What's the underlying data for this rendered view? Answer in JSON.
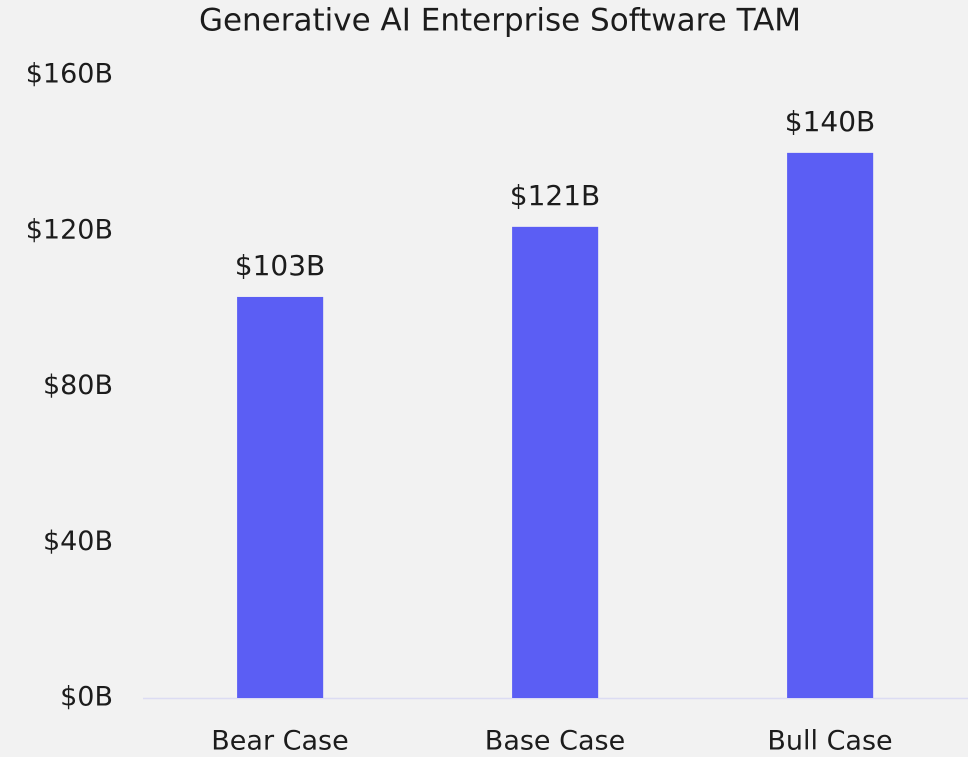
{
  "chart_data": {
    "type": "bar",
    "title": "Generative AI Enterprise Software TAM",
    "categories": [
      "Bear Case",
      "Base Case",
      "Bull Case"
    ],
    "values": [
      103,
      121,
      140
    ],
    "value_labels": [
      "$103B",
      "$121B",
      "$140B"
    ],
    "color": "#5b5ef4",
    "ylim": [
      0,
      160
    ],
    "yticks": [
      {
        "value": 0,
        "label": "$0B"
      },
      {
        "value": 40,
        "label": "$40B"
      },
      {
        "value": 80,
        "label": "$80B"
      },
      {
        "value": 120,
        "label": "$120B"
      },
      {
        "value": 160,
        "label": "$160B"
      }
    ],
    "grid": false
  }
}
